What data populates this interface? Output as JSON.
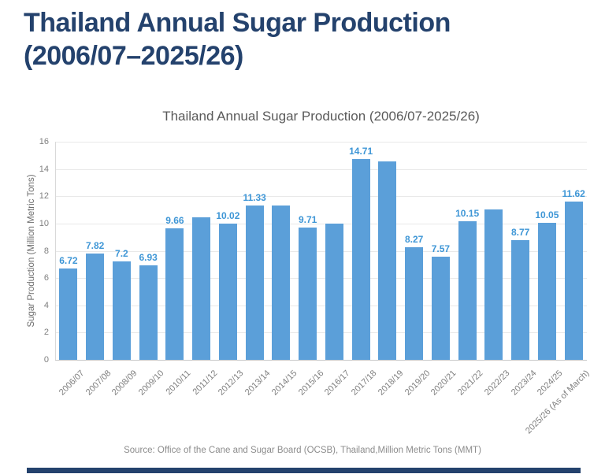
{
  "page": {
    "title_line1": "Thailand Annual Sugar Production",
    "title_line2": "(2006/07–2025/26)",
    "source": "Source: Office of the Cane and Sugar Board (OCSB), Thailand,Million Metric Tons (MMT)"
  },
  "colors": {
    "title": "#24426D",
    "bar": "#5B9FD9",
    "data_label": "#3E96D6",
    "chart_title": "#595959",
    "axis_text": "#7F7F7F",
    "gridline": "#E9E9E9",
    "axis_line": "#D9D9D9",
    "baseline": "#C9C9C9",
    "source_text": "#8C8C8C",
    "footer_bar": "#24426D"
  },
  "chart_data": {
    "type": "bar",
    "title": "Thailand Annual Sugar Production (2006/07-2025/26)",
    "xlabel": "",
    "ylabel": "Sugar Production (Million Metric Tons)",
    "ylim": [
      0,
      16
    ],
    "ytick_interval": 2,
    "grid": true,
    "legend": "none",
    "categories": [
      "2006/07",
      "2007/08",
      "2008/09",
      "2009/10",
      "2010/11",
      "2011/12",
      "2012/13",
      "2013/14",
      "2014/15",
      "2015/16",
      "2016/17",
      "2017/18",
      "2018/19",
      "2019/20",
      "2020/21",
      "2021/22",
      "2022/23",
      "2023/24",
      "2024/25",
      "2025/26 (As of March)"
    ],
    "values": [
      6.72,
      7.82,
      7.2,
      6.93,
      9.66,
      10.45,
      10.02,
      11.33,
      11.3,
      9.71,
      10.0,
      14.71,
      14.55,
      8.27,
      7.57,
      10.15,
      11.05,
      8.77,
      10.05,
      11.62
    ],
    "data_labels": [
      "6.72",
      "7.82",
      "7.2",
      "6.93",
      "9.66",
      "",
      "10.02",
      "11.33",
      "",
      "9.71",
      "",
      "14.71",
      "",
      "8.27",
      "7.57",
      "10.15",
      "",
      "8.77",
      "10.05",
      "11.62"
    ]
  }
}
